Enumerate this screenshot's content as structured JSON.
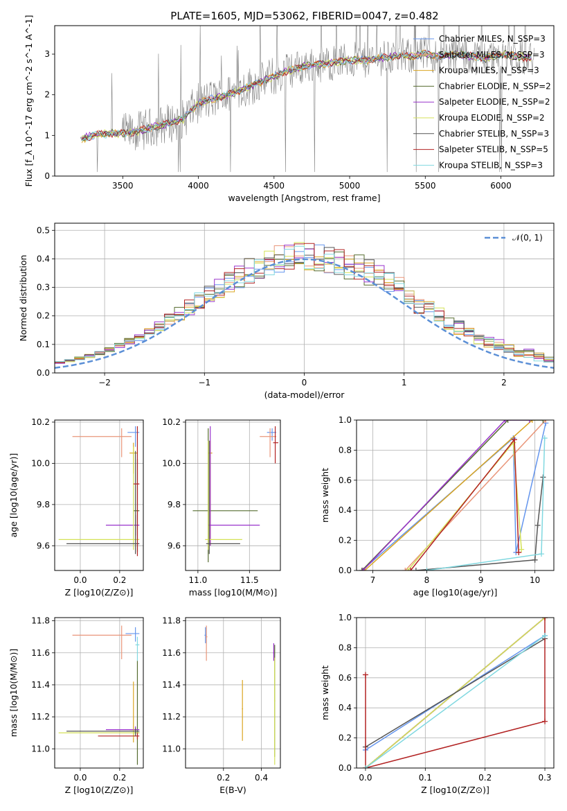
{
  "figure_title": "PLATE=1605, MJD=53062, FIBERID=0047, z=0.482",
  "colors": [
    "#6495ed",
    "#e9967a",
    "#daa520",
    "#556b2f",
    "#9932cc",
    "#d4e157",
    "#555555",
    "#b22222",
    "#80d8e0"
  ],
  "chart_data": [
    {
      "id": "spectrum",
      "type": "line",
      "xlabel": "wavelength [Angstrom, rest frame]",
      "ylabel": "Flux [f_λ 10^-17 erg cm^-2 s^-1 A^-1]",
      "xlim": [
        3050,
        6350
      ],
      "ylim": [
        0,
        3.7
      ],
      "xticks": [
        3500,
        4000,
        4500,
        5000,
        5500,
        6000
      ],
      "yticks": [
        0,
        1,
        2,
        3
      ],
      "grid": false,
      "legend_position": "top-right",
      "series": [
        {
          "name": "Chabrier MILES, N_SSP=3"
        },
        {
          "name": "Salpeter MILES, N_SSP=3"
        },
        {
          "name": "Kroupa MILES, N_SSP=3"
        },
        {
          "name": "Chabrier ELODIE, N_SSP=2"
        },
        {
          "name": "Salpeter ELODIE, N_SSP=2"
        },
        {
          "name": "Kroupa ELODIE, N_SSP=2"
        },
        {
          "name": "Chabrier STELIB, N_SSP=3"
        },
        {
          "name": "Salpeter STELIB, N_SSP=5"
        },
        {
          "name": "Kroupa STELIB, N_SSP=3"
        }
      ],
      "continuum": {
        "x": [
          3220,
          3300,
          3400,
          3500,
          3600,
          3700,
          3800,
          3900,
          3950,
          4000,
          4100,
          4200,
          4300,
          4400,
          4500,
          4600,
          4700,
          4800,
          4900,
          5000,
          5100,
          5200,
          5300,
          5400,
          5500,
          5600,
          5700,
          5800,
          5900,
          6000,
          6100,
          6200
        ],
        "y": [
          0.9,
          1.0,
          1.05,
          1.05,
          1.1,
          1.2,
          1.3,
          1.4,
          1.6,
          1.8,
          1.9,
          2.0,
          2.15,
          2.3,
          2.45,
          2.6,
          2.7,
          2.75,
          2.8,
          2.85,
          2.85,
          2.9,
          2.95,
          2.95,
          3.0,
          2.95,
          3.0,
          2.95,
          2.9,
          3.0,
          2.95,
          2.9
        ]
      }
    },
    {
      "id": "residual_hist",
      "type": "line",
      "xlabel": "(data-model)/error",
      "ylabel": "Normed distribution",
      "xlim": [
        -2.5,
        2.5
      ],
      "ylim": [
        0,
        0.525
      ],
      "xticks": [
        -2,
        -1,
        0,
        1,
        2
      ],
      "yticks": [
        0.0,
        0.1,
        0.2,
        0.3,
        0.4,
        0.5
      ],
      "grid": true,
      "legend_position": "top-right",
      "reference_curve": {
        "name": "𝒩(0, 1)",
        "mean": 0,
        "sigma": 1
      }
    },
    {
      "id": "age_vs_Z",
      "type": "scatter",
      "xlabel": "Z [log10(Z/Z⊙)]",
      "ylabel": "age [log10(age/yr)]",
      "xlim": [
        -0.13,
        0.32
      ],
      "ylim": [
        9.48,
        10.21
      ],
      "xticks": [
        0.0,
        0.2
      ],
      "yticks": [
        9.6,
        9.8,
        10.0,
        10.2
      ],
      "points": [
        {
          "x": 0.28,
          "y": 10.15,
          "xerr": [
            0.04,
            0.02
          ],
          "yerr": [
            0.07,
            0.03
          ]
        },
        {
          "x": 0.21,
          "y": 10.13,
          "xerr": [
            0.25,
            0.05
          ],
          "yerr": [
            0.1,
            0.04
          ]
        },
        {
          "x": 0.27,
          "y": 10.05,
          "xerr": [
            0.02,
            0.02
          ],
          "yerr": [
            0.1,
            0.05
          ]
        },
        {
          "x": 0.29,
          "y": 9.77,
          "xerr": [
            0.02,
            0.01
          ],
          "yerr": [
            0.2,
            0.25
          ]
        },
        {
          "x": 0.28,
          "y": 9.7,
          "xerr": [
            0.15,
            0.02
          ],
          "yerr": [
            0.05,
            0.05
          ]
        },
        {
          "x": 0.27,
          "y": 9.63,
          "xerr": [
            0.38,
            0.03
          ],
          "yerr": [
            0.05,
            0.45
          ]
        },
        {
          "x": 0.28,
          "y": 9.61,
          "xerr": [
            0.35,
            0.02
          ],
          "yerr": [
            0.05,
            0.45
          ]
        },
        {
          "x": 0.29,
          "y": 9.9,
          "xerr": [
            0.02,
            0.01
          ],
          "yerr": [
            0.35,
            0.28
          ]
        }
      ]
    },
    {
      "id": "age_vs_mass",
      "type": "scatter",
      "xlabel": "mass [log10(M/M⊙)]",
      "ylabel": "",
      "xlim": [
        10.88,
        11.8
      ],
      "ylim": [
        9.48,
        10.21
      ],
      "xticks": [
        11.0,
        11.5
      ],
      "yticks": [
        9.6,
        9.8,
        10.0,
        10.2
      ],
      "points": [
        {
          "x": 11.72,
          "y": 10.15,
          "xerr": [
            0.05,
            0.04
          ],
          "yerr": [
            0.04,
            0.02
          ]
        },
        {
          "x": 11.7,
          "y": 10.13,
          "xerr": [
            0.1,
            0.06
          ],
          "yerr": [
            0.1,
            0.04
          ]
        },
        {
          "x": 11.12,
          "y": 10.05,
          "xerr": [
            0.02,
            0.02
          ],
          "yerr": [
            0.45,
            0.06
          ]
        },
        {
          "x": 11.1,
          "y": 9.77,
          "xerr": [
            0.15,
            0.48
          ],
          "yerr": [
            0.25,
            0.4
          ]
        },
        {
          "x": 11.12,
          "y": 9.7,
          "xerr": [
            0.02,
            0.48
          ],
          "yerr": [
            0.1,
            0.48
          ]
        },
        {
          "x": 11.1,
          "y": 9.63,
          "xerr": [
            0.03,
            0.33
          ],
          "yerr": [
            0.05,
            0.48
          ]
        },
        {
          "x": 11.11,
          "y": 9.61,
          "xerr": [
            0.03,
            0.3
          ],
          "yerr": [
            0.05,
            0.5
          ]
        },
        {
          "x": 11.75,
          "y": 10.1,
          "xerr": [
            0.02,
            0.03
          ],
          "yerr": [
            0.1,
            0.08
          ]
        }
      ]
    },
    {
      "id": "cumulative_mass_weight_vs_age",
      "type": "line",
      "xlabel": "age [log10(age/yr)]",
      "ylabel": "mass weight",
      "xlim": [
        6.7,
        10.35
      ],
      "ylim": [
        0.0,
        1.0
      ],
      "xticks": [
        7,
        8,
        9,
        10
      ],
      "yticks": [
        0.0,
        0.2,
        0.4,
        0.6,
        0.8,
        1.0
      ],
      "grid": true,
      "series": [
        {
          "x": [
            6.8,
            9.6,
            9.65,
            10.2
          ],
          "y": [
            0.0,
            0.88,
            0.12,
            0.98
          ]
        },
        {
          "x": [
            7.6,
            10.2
          ],
          "y": [
            0.0,
            1.0
          ]
        },
        {
          "x": [
            6.85,
            9.95
          ],
          "y": [
            0.0,
            1.0
          ]
        },
        {
          "x": [
            6.8,
            9.5,
            10.15
          ],
          "y": [
            0.0,
            1.0,
            1.0
          ]
        },
        {
          "x": [
            6.82,
            9.45,
            9.9
          ],
          "y": [
            0.0,
            1.0,
            1.0
          ]
        },
        {
          "x": [
            7.65,
            9.6,
            9.75
          ],
          "y": [
            0.0,
            0.85,
            0.14
          ]
        },
        {
          "x": [
            7.8,
            10.0,
            10.05,
            10.15
          ],
          "y": [
            0.0,
            0.07,
            0.3,
            0.62
          ]
        },
        {
          "x": [
            7.7,
            9.62,
            9.7
          ],
          "y": [
            0.0,
            0.87,
            0.12
          ]
        },
        {
          "x": [
            8.0,
            10.12,
            10.18
          ],
          "y": [
            0.0,
            0.11,
            0.88
          ]
        }
      ]
    },
    {
      "id": "mass_vs_Z",
      "type": "scatter",
      "xlabel": "Z [log10(Z/Z⊙)]",
      "ylabel": "mass [log10(M/M⊙)]",
      "xlim": [
        -0.13,
        0.32
      ],
      "ylim": [
        10.88,
        11.82
      ],
      "xticks": [
        0.0,
        0.2
      ],
      "yticks": [
        11.0,
        11.2,
        11.4,
        11.6,
        11.8
      ],
      "points": [
        {
          "x": 0.28,
          "y": 11.72,
          "xerr": [
            0.05,
            0.02
          ],
          "yerr": [
            0.05,
            0.04
          ]
        },
        {
          "x": 0.21,
          "y": 11.71,
          "xerr": [
            0.25,
            0.05
          ],
          "yerr": [
            0.15,
            0.06
          ]
        },
        {
          "x": 0.27,
          "y": 11.12,
          "xerr": [
            0.02,
            0.02
          ],
          "yerr": [
            0.08,
            0.3
          ]
        },
        {
          "x": 0.29,
          "y": 11.1,
          "xerr": [
            0.02,
            0.01
          ],
          "yerr": [
            0.2,
            0.45
          ]
        },
        {
          "x": 0.28,
          "y": 11.12,
          "xerr": [
            0.15,
            0.02
          ],
          "yerr": [
            0.02,
            0.02
          ]
        },
        {
          "x": 0.27,
          "y": 11.1,
          "xerr": [
            0.38,
            0.03
          ],
          "yerr": [
            0.03,
            0.02
          ]
        },
        {
          "x": 0.28,
          "y": 11.11,
          "xerr": [
            0.35,
            0.02
          ],
          "yerr": [
            0.03,
            0.02
          ]
        },
        {
          "x": 0.29,
          "y": 11.08,
          "xerr": [
            0.2,
            0.01
          ],
          "yerr": [
            0.02,
            0.02
          ]
        },
        {
          "x": 0.29,
          "y": 11.65,
          "xerr": [
            0.01,
            0.01
          ],
          "yerr": [
            0.1,
            0.05
          ]
        }
      ]
    },
    {
      "id": "mass_vs_EBV",
      "type": "scatter",
      "xlabel": "E(B-V)",
      "ylabel": "",
      "xlim": [
        0.0,
        0.5
      ],
      "ylim": [
        10.88,
        11.82
      ],
      "xticks": [
        0.2,
        0.4
      ],
      "yticks": [
        11.0,
        11.2,
        11.4,
        11.6,
        11.8
      ],
      "points": [
        {
          "x": 0.105,
          "y": 11.71,
          "xerr": [
            0.005,
            0.005
          ],
          "yerr": [
            0.05,
            0.05
          ]
        },
        {
          "x": 0.11,
          "y": 11.7,
          "xerr": [
            0.005,
            0.005
          ],
          "yerr": [
            0.15,
            0.07
          ]
        },
        {
          "x": 0.3,
          "y": 11.25,
          "xerr": [
            0.003,
            0.003
          ],
          "yerr": [
            0.2,
            0.18
          ]
        },
        {
          "x": 0.47,
          "y": 11.3,
          "xerr": [
            0.003,
            0.003
          ],
          "yerr": [
            0.35,
            0.35
          ]
        },
        {
          "x": 0.465,
          "y": 11.6,
          "xerr": [
            0.003,
            0.003
          ],
          "yerr": [
            0.05,
            0.06
          ]
        },
        {
          "x": 0.47,
          "y": 11.3,
          "xerr": [
            0.003,
            0.003
          ],
          "yerr": [
            0.4,
            0.27
          ]
        }
      ]
    },
    {
      "id": "cumulative_mass_weight_vs_Z",
      "type": "line",
      "xlabel": "Z [log10(Z/Z⊙)]",
      "ylabel": "mass weight",
      "xlim": [
        -0.015,
        0.315
      ],
      "ylim": [
        0.0,
        1.0
      ],
      "xticks": [
        0.0,
        0.1,
        0.2,
        0.3
      ],
      "yticks": [
        0.0,
        0.2,
        0.4,
        0.6,
        0.8,
        1.0
      ],
      "grid": true,
      "series": [
        {
          "x": [
            0.0,
            0.3
          ],
          "y": [
            0.12,
            0.88
          ]
        },
        {
          "x": [
            0.0,
            0.3
          ],
          "y": [
            0.0,
            1.0
          ]
        },
        {
          "x": [
            0.0,
            0.3
          ],
          "y": [
            0.0,
            1.0
          ]
        },
        {
          "x": [
            0.0,
            0.3
          ],
          "y": [
            0.0,
            1.0
          ]
        },
        {
          "x": [
            0.0,
            0.3
          ],
          "y": [
            0.0,
            1.0
          ]
        },
        {
          "x": [
            0.0,
            0.3
          ],
          "y": [
            0.0,
            1.0
          ]
        },
        {
          "x": [
            0.0,
            0.3
          ],
          "y": [
            0.14,
            0.86
          ]
        },
        {
          "x": [
            0.0,
            0.0,
            0.3,
            0.3
          ],
          "y": [
            0.62,
            0.0,
            0.31,
            1.0
          ]
        },
        {
          "x": [
            0.0,
            0.3
          ],
          "y": [
            0.0,
            0.88
          ]
        }
      ]
    }
  ]
}
